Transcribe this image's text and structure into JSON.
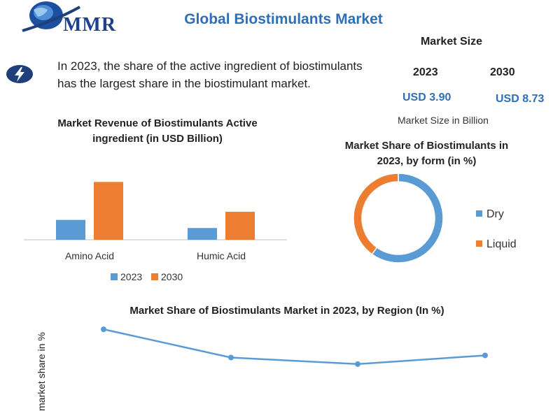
{
  "header": {
    "logo_text": "MMR",
    "title": "Global Biostimulants Market"
  },
  "market_size": {
    "heading": "Market Size",
    "year_2023": "2023",
    "year_2030": "2030",
    "value_2023": "USD 3.90",
    "value_2030": "USD 8.73",
    "unit": "Market Size in Billion"
  },
  "highlight": {
    "icon": "lightning-bolt-icon",
    "line1": "In 2023, the share of the active ingredient of biostimulants",
    "line2": "has the largest share in the biostimulant market."
  },
  "colors": {
    "blue": "#5b9bd5",
    "orange": "#ed7d31",
    "brand_blue": "#2f6fb6"
  },
  "chart_data": [
    {
      "type": "bar",
      "title_line1": "Market Revenue of Biostimulants Active",
      "title_line2": "ingredient (in USD Billion)",
      "categories": [
        "Amino Acid",
        "Humic Acid"
      ],
      "series": [
        {
          "name": "2023",
          "values": [
            1.1,
            0.65
          ]
        },
        {
          "name": "2030",
          "values": [
            3.2,
            1.55
          ]
        }
      ],
      "ylim": [
        0,
        3.6
      ],
      "legend": "bottom",
      "grid": false
    },
    {
      "type": "pie",
      "title_line1": "Market Share of Biostimulants in",
      "title_line2": "2023, by form (in %)",
      "labels": [
        "Dry",
        "Liquid"
      ],
      "values": [
        60,
        40
      ],
      "donut": true,
      "legend": "right"
    },
    {
      "type": "line",
      "title": "Market Share of Biostimulants Market in 2023, by Region (In %)",
      "ylabel": "market share in %",
      "values": [
        35,
        22,
        19,
        23
      ],
      "ylim": [
        0,
        45
      ],
      "grid": false
    }
  ]
}
